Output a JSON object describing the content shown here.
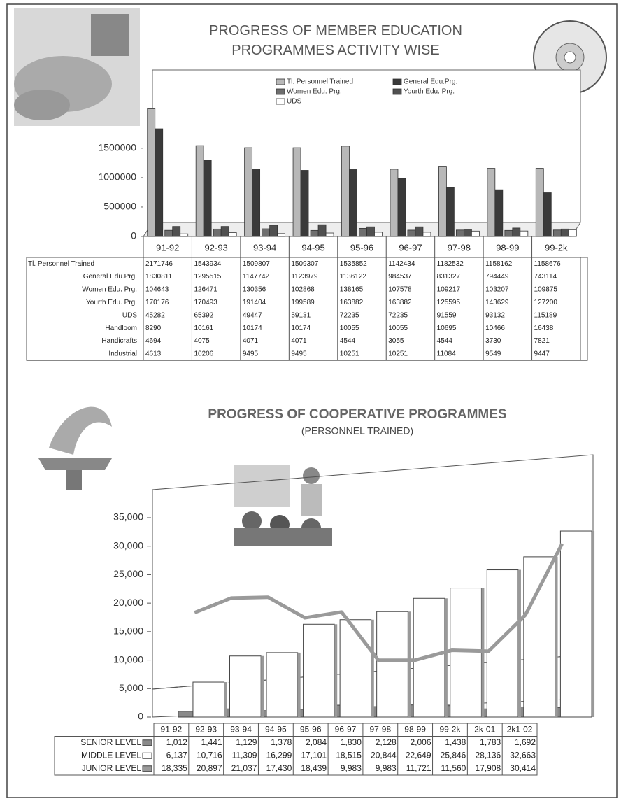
{
  "chart_data": [
    {
      "type": "bar",
      "title": "PROGRESS OF MEMBER EDUCATION PROGRAMMES ACTIVITY WISE",
      "categories": [
        "91-92",
        "92-93",
        "93-94",
        "94-95",
        "95-96",
        "96-97",
        "97-98",
        "98-99",
        "99-2k"
      ],
      "series": [
        {
          "name": "Tl. Personnel Trained",
          "color": "#b8b8b8",
          "values": [
            2171746,
            1543934,
            1509807,
            1509307,
            1535852,
            1142434,
            1182532,
            1158162,
            1158676
          ]
        },
        {
          "name": "General Edu.Prg.",
          "color": "#3a3a3a",
          "values": [
            1830811,
            1295515,
            1147742,
            1123979,
            1136122,
            984537,
            831327,
            794449,
            743114
          ]
        },
        {
          "name": "Women Edu. Prg.",
          "color": "#6e6e6e",
          "values": [
            104643,
            126471,
            130356,
            102868,
            138165,
            107578,
            109217,
            103207,
            109875
          ]
        },
        {
          "name": "Yourth Edu. Prg.",
          "color": "#505050",
          "values": [
            170176,
            170493,
            191404,
            199589,
            163882,
            163882,
            125595,
            143629,
            127200
          ]
        },
        {
          "name": "UDS",
          "color": "#ffffff",
          "values": [
            45282,
            65392,
            49447,
            59131,
            72235,
            72235,
            91559,
            93132,
            115189
          ]
        }
      ],
      "table_rows": [
        {
          "name": "Handloom",
          "values": [
            8290,
            10161,
            10174,
            10174,
            10055,
            10055,
            10695,
            10466,
            16438
          ]
        },
        {
          "name": "Handicrafts",
          "values": [
            4694,
            4075,
            4071,
            4071,
            4544,
            3055,
            4544,
            3730,
            7821
          ]
        },
        {
          "name": "Industrial",
          "values": [
            4613,
            10206,
            9495,
            9495,
            10251,
            10251,
            11084,
            9549,
            9447
          ]
        }
      ],
      "ylim": [
        0,
        2200000
      ],
      "yticks": [
        0,
        500000,
        1000000,
        1500000
      ]
    },
    {
      "type": "combo",
      "title": "PROGRESS OF COOPERATIVE PROGRAMMES",
      "subtitle": "(PERSONNEL TRAINED)",
      "categories": [
        "91-92",
        "92-93",
        "93-94",
        "94-95",
        "95-96",
        "96-97",
        "97-98",
        "98-99",
        "99-2k",
        "2k-01",
        "2k1-02"
      ],
      "series": [
        {
          "name": "SENIOR LEVEL",
          "mark": "bar",
          "color": "#8a8a8a",
          "values": [
            1012,
            1441,
            1129,
            1378,
            2084,
            1830,
            2128,
            2006,
            1438,
            1783,
            1692
          ],
          "value_labels": [
            "1,012",
            "1,441",
            "1,129",
            "1,378",
            "2,084",
            "1,830",
            "2,128",
            "2,006",
            "1,438",
            "1,783",
            "1,692"
          ]
        },
        {
          "name": "MIDDLE LEVEL",
          "mark": "bar",
          "color": "#ffffff",
          "values": [
            6137,
            10716,
            11309,
            16299,
            17101,
            18515,
            20844,
            22649,
            25846,
            28136,
            32663
          ],
          "value_labels": [
            "6,137",
            "10,716",
            "11,309",
            "16,299",
            "17,101",
            "18,515",
            "20,844",
            "22,649",
            "25,846",
            "28,136",
            "32,663"
          ]
        },
        {
          "name": "JUNIOR LEVEL",
          "mark": "line",
          "color": "#9a9a9a",
          "values": [
            18335,
            20897,
            21037,
            17430,
            18439,
            9983,
            9983,
            11721,
            11560,
            17908,
            30414
          ],
          "value_labels": [
            "18,335",
            "20,897",
            "21,037",
            "17,430",
            "18,439",
            "9,983",
            "9,983",
            "11,721",
            "11,560",
            "17,908",
            "30,414"
          ]
        }
      ],
      "ylim": [
        0,
        35000
      ],
      "yticks": [
        0,
        {
          "value": 5000,
          "label": "5,000"
        },
        {
          "value": 10000,
          "label": "10,000"
        },
        {
          "value": 15000,
          "label": "15,000"
        },
        {
          "value": 20000,
          "label": "20,000"
        },
        {
          "value": 25000,
          "label": "25,000"
        },
        {
          "value": 30000,
          "label": "30,000"
        },
        {
          "value": 35000,
          "label": "35,000"
        }
      ]
    }
  ]
}
